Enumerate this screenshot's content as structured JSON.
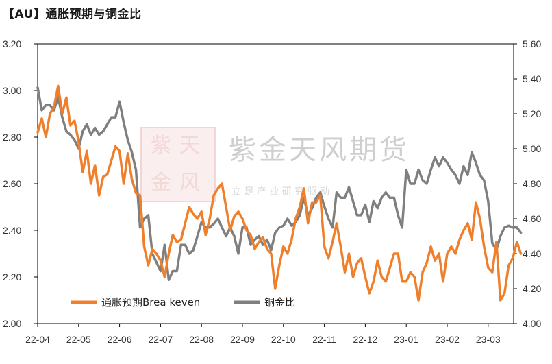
{
  "title": "【AU】通胀预期与铜金比",
  "watermark": {
    "company": "紫金天风期货",
    "slogan": "立 足 产 业 研 究 驱 动",
    "seal_chars": [
      "紫",
      "天",
      "金",
      "风"
    ]
  },
  "colors": {
    "breakeven": "#F07F2C",
    "copper_gold": "#7F7F7F",
    "axis": "#000000"
  },
  "chart_data": {
    "type": "line",
    "title": "【AU】通胀预期与铜金比",
    "x_ticks": [
      "22-04",
      "22-05",
      "22-06",
      "22-07",
      "22-08",
      "22-09",
      "22-10",
      "22-11",
      "22-12",
      "23-01",
      "23-02",
      "23-03"
    ],
    "y_left": {
      "min": 2.0,
      "max": 3.2,
      "ticks": [
        "2.00",
        "2.20",
        "2.40",
        "2.60",
        "2.80",
        "3.00",
        "3.20"
      ]
    },
    "y_right": {
      "min": 4.0,
      "max": 5.6,
      "ticks": [
        "4.00",
        "4.20",
        "4.40",
        "4.60",
        "4.80",
        "5.00",
        "5.20",
        "5.40",
        "5.60"
      ]
    },
    "legend": {
      "position": "bottom-left",
      "entries": [
        "通胀预期Brea keven",
        "铜金比"
      ]
    },
    "series": [
      {
        "name": "通胀预期Brea keven",
        "axis": "left",
        "color": "#F07F2C",
        "x": [
          0,
          0.1,
          0.2,
          0.3,
          0.4,
          0.5,
          0.6,
          0.7,
          0.8,
          0.9,
          1,
          1.1,
          1.2,
          1.3,
          1.4,
          1.5,
          1.6,
          1.7,
          1.8,
          1.9,
          2,
          2.1,
          2.2,
          2.3,
          2.4,
          2.5,
          2.6,
          2.7,
          2.8,
          2.9,
          3,
          3.1,
          3.2,
          3.3,
          3.4,
          3.5,
          3.6,
          3.7,
          3.8,
          3.9,
          4,
          4.1,
          4.2,
          4.3,
          4.4,
          4.5,
          4.6,
          4.7,
          4.8,
          4.9,
          5,
          5.1,
          5.2,
          5.3,
          5.4,
          5.5,
          5.6,
          5.7,
          5.8,
          5.9,
          6,
          6.1,
          6.2,
          6.3,
          6.4,
          6.5,
          6.6,
          6.7,
          6.8,
          6.9,
          7,
          7.1,
          7.2,
          7.3,
          7.4,
          7.5,
          7.6,
          7.7,
          7.8,
          7.9,
          8,
          8.1,
          8.2,
          8.3,
          8.4,
          8.5,
          8.6,
          8.7,
          8.8,
          8.9,
          9,
          9.1,
          9.2,
          9.3,
          9.4,
          9.5,
          9.6,
          9.7,
          9.8,
          9.9,
          10,
          10.1,
          10.2,
          10.3,
          10.4,
          10.5,
          10.6,
          10.7,
          10.8,
          10.9,
          11,
          11.1,
          11.2,
          11.3,
          11.4,
          11.5,
          11.6,
          11.7,
          11.8
        ],
        "values": [
          2.82,
          2.88,
          2.8,
          2.9,
          2.93,
          3.02,
          2.9,
          2.97,
          2.85,
          2.87,
          2.78,
          2.65,
          2.74,
          2.6,
          2.68,
          2.55,
          2.63,
          2.64,
          2.7,
          2.76,
          2.74,
          2.6,
          2.73,
          2.62,
          2.56,
          2.55,
          2.33,
          2.25,
          2.32,
          2.3,
          2.27,
          2.2,
          2.3,
          2.38,
          2.35,
          2.36,
          2.43,
          2.5,
          2.47,
          2.45,
          2.48,
          2.38,
          2.45,
          2.55,
          2.58,
          2.6,
          2.5,
          2.4,
          2.46,
          2.48,
          2.45,
          2.4,
          2.38,
          2.32,
          2.35,
          2.37,
          2.32,
          2.3,
          2.15,
          2.25,
          2.33,
          2.3,
          2.36,
          2.45,
          2.5,
          2.58,
          2.43,
          2.52,
          2.52,
          2.55,
          2.33,
          2.28,
          2.35,
          2.43,
          2.33,
          2.22,
          2.3,
          2.2,
          2.26,
          2.28,
          2.2,
          2.13,
          2.18,
          2.27,
          2.2,
          2.18,
          2.24,
          2.3,
          2.3,
          2.18,
          2.18,
          2.22,
          2.2,
          2.1,
          2.22,
          2.26,
          2.33,
          2.27,
          2.3,
          2.18,
          2.3,
          2.33,
          2.3,
          2.36,
          2.4,
          2.43,
          2.36,
          2.52,
          2.45,
          2.33,
          2.24,
          2.22,
          2.35,
          2.1,
          2.13,
          2.25,
          2.28,
          2.35,
          2.3
        ]
      },
      {
        "name": "铜金比",
        "axis": "right",
        "color": "#7F7F7F",
        "x": [
          0,
          0.1,
          0.2,
          0.3,
          0.4,
          0.5,
          0.6,
          0.7,
          0.8,
          0.9,
          1,
          1.1,
          1.2,
          1.3,
          1.4,
          1.5,
          1.6,
          1.7,
          1.8,
          1.9,
          2,
          2.1,
          2.2,
          2.3,
          2.4,
          2.5,
          2.6,
          2.7,
          2.8,
          2.9,
          3,
          3.1,
          3.2,
          3.3,
          3.4,
          3.5,
          3.6,
          3.7,
          3.8,
          3.9,
          4,
          4.1,
          4.2,
          4.3,
          4.4,
          4.5,
          4.6,
          4.7,
          4.8,
          4.9,
          5,
          5.1,
          5.2,
          5.3,
          5.4,
          5.5,
          5.6,
          5.7,
          5.8,
          5.9,
          6,
          6.1,
          6.2,
          6.3,
          6.4,
          6.5,
          6.6,
          6.7,
          6.8,
          6.9,
          7,
          7.1,
          7.2,
          7.3,
          7.4,
          7.5,
          7.6,
          7.7,
          7.8,
          7.9,
          8,
          8.1,
          8.2,
          8.3,
          8.4,
          8.5,
          8.6,
          8.7,
          8.8,
          8.9,
          9,
          9.1,
          9.2,
          9.3,
          9.4,
          9.5,
          9.6,
          9.7,
          9.8,
          9.9,
          10,
          10.1,
          10.2,
          10.3,
          10.4,
          10.5,
          10.6,
          10.7,
          10.8,
          10.9,
          11,
          11.1,
          11.2,
          11.3,
          11.4,
          11.5,
          11.6,
          11.7,
          11.8
        ],
        "values": [
          5.35,
          5.22,
          5.25,
          5.25,
          5.22,
          5.3,
          5.18,
          5.1,
          5.08,
          5.05,
          5.0,
          5.1,
          5.14,
          5.08,
          5.12,
          5.08,
          5.1,
          5.14,
          5.18,
          5.18,
          5.27,
          5.15,
          5.05,
          4.98,
          4.88,
          4.55,
          4.6,
          4.62,
          4.4,
          4.35,
          4.3,
          4.45,
          4.25,
          4.3,
          4.3,
          4.45,
          4.45,
          4.4,
          4.42,
          4.5,
          4.58,
          4.55,
          4.55,
          4.57,
          4.6,
          4.55,
          4.5,
          4.55,
          4.5,
          4.4,
          4.55,
          4.55,
          4.45,
          4.48,
          4.5,
          4.45,
          4.48,
          4.42,
          4.52,
          4.55,
          4.56,
          4.6,
          4.56,
          4.58,
          4.62,
          4.72,
          4.62,
          4.66,
          4.72,
          4.75,
          4.67,
          4.6,
          4.55,
          4.75,
          4.72,
          4.72,
          4.78,
          4.7,
          4.62,
          4.62,
          4.68,
          4.58,
          4.7,
          4.66,
          4.72,
          4.75,
          4.72,
          4.72,
          4.62,
          4.55,
          4.88,
          4.8,
          4.8,
          4.88,
          4.82,
          4.8,
          4.88,
          4.95,
          4.9,
          4.95,
          4.92,
          4.88,
          4.85,
          4.8,
          4.9,
          4.85,
          4.98,
          4.92,
          4.85,
          4.82,
          4.7,
          4.46,
          4.42,
          4.5,
          4.55,
          4.56,
          4.55,
          4.55,
          4.52
        ]
      }
    ]
  }
}
